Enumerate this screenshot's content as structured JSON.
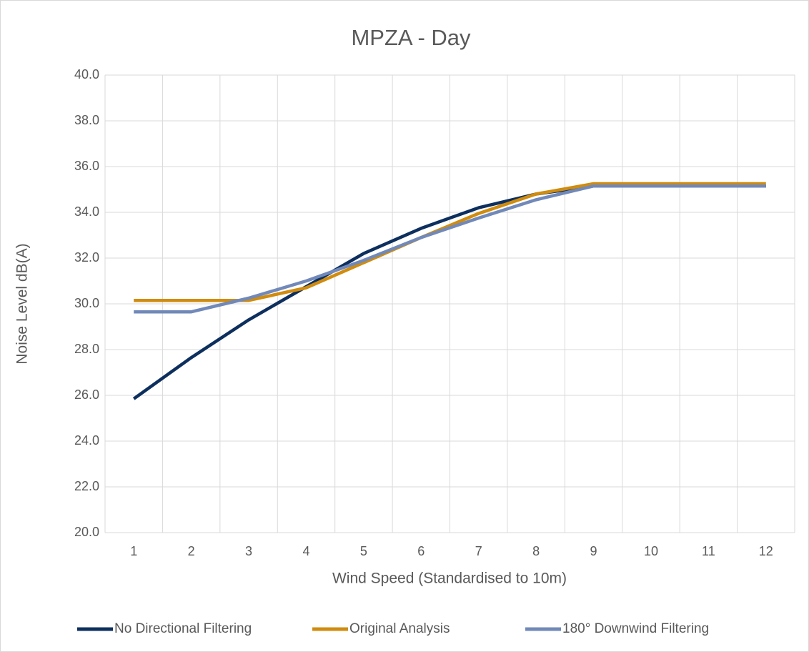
{
  "chart_data": {
    "type": "line",
    "title": "MPZA - Day",
    "x_label": "Wind Speed (Standardised to 10m)",
    "y_label": "Noise Level dB(A)",
    "categories": [
      "1",
      "2",
      "3",
      "4",
      "5",
      "6",
      "7",
      "8",
      "9",
      "10",
      "11",
      "12"
    ],
    "series": [
      {
        "name": "No Directional Filtering",
        "color": "#0d2f5e",
        "values": [
          25.85,
          27.65,
          29.3,
          30.75,
          32.2,
          33.3,
          34.2,
          34.8,
          35.15,
          35.15,
          35.15,
          35.15
        ]
      },
      {
        "name": "Original Analysis",
        "color": "#d08c0e",
        "values": [
          30.15,
          30.15,
          30.15,
          30.7,
          31.8,
          32.9,
          33.95,
          34.8,
          35.25,
          35.25,
          35.25,
          35.25
        ]
      },
      {
        "name": "180° Downwind Filtering",
        "color": "#7189b9",
        "values": [
          29.65,
          29.65,
          30.25,
          31.0,
          31.9,
          32.9,
          33.75,
          34.55,
          35.15,
          35.15,
          35.15,
          35.15
        ]
      }
    ],
    "ylim": [
      20,
      40
    ],
    "yticks": [
      {
        "value": 20,
        "label": "20.0"
      },
      {
        "value": 22,
        "label": "22.0"
      },
      {
        "value": 24,
        "label": "24.0"
      },
      {
        "value": 26,
        "label": "26.0"
      },
      {
        "value": 28,
        "label": "28.0"
      },
      {
        "value": 30,
        "label": "30.0"
      },
      {
        "value": 32,
        "label": "32.0"
      },
      {
        "value": 34,
        "label": "34.0"
      },
      {
        "value": 36,
        "label": "36.0"
      },
      {
        "value": 38,
        "label": "38.0"
      },
      {
        "value": 40,
        "label": "40.0"
      }
    ],
    "grid": true,
    "legend": "bottom"
  }
}
